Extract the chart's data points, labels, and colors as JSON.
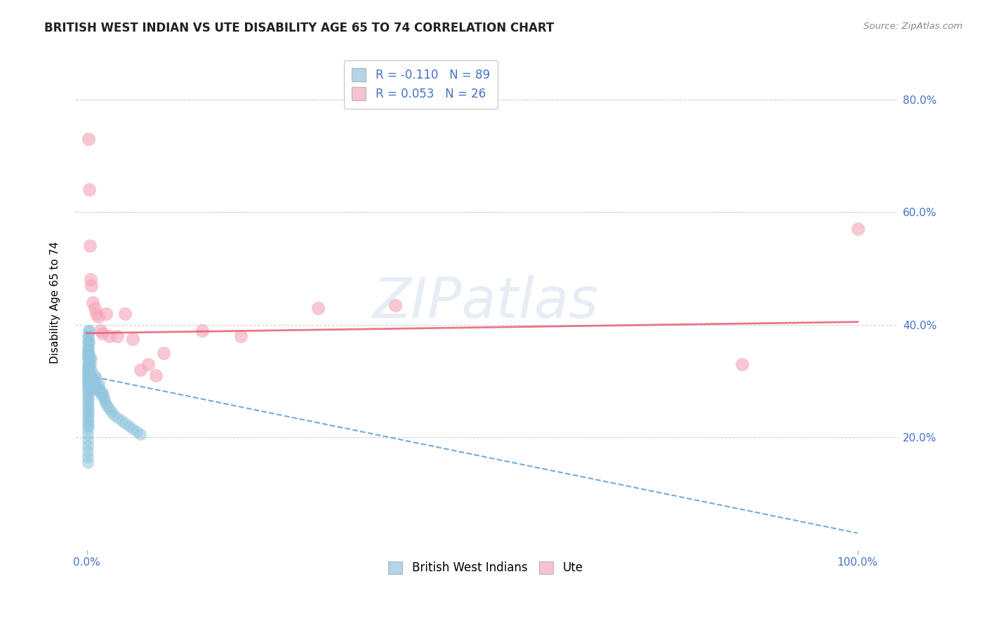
{
  "title": "BRITISH WEST INDIAN VS UTE DISABILITY AGE 65 TO 74 CORRELATION CHART",
  "source": "Source: ZipAtlas.com",
  "ylabel": "Disability Age 65 to 74",
  "watermark": "ZIPatlas",
  "blue_R": -0.11,
  "blue_N": 89,
  "pink_R": 0.053,
  "pink_N": 26,
  "blue_color": "#92c5de",
  "pink_color": "#f4a9bb",
  "blue_line_color": "#5b9bd5",
  "pink_line_color": "#e8677a",
  "legend_label_blue": "British West Indians",
  "legend_label_pink": "Ute",
  "blue_scatter_x": [
    0.001,
    0.001,
    0.001,
    0.001,
    0.001,
    0.001,
    0.001,
    0.001,
    0.001,
    0.001,
    0.001,
    0.001,
    0.001,
    0.001,
    0.001,
    0.001,
    0.001,
    0.001,
    0.001,
    0.001,
    0.001,
    0.001,
    0.001,
    0.001,
    0.001,
    0.001,
    0.001,
    0.001,
    0.001,
    0.001,
    0.002,
    0.002,
    0.002,
    0.002,
    0.002,
    0.002,
    0.002,
    0.002,
    0.002,
    0.002,
    0.002,
    0.002,
    0.002,
    0.002,
    0.002,
    0.002,
    0.002,
    0.003,
    0.003,
    0.003,
    0.003,
    0.003,
    0.003,
    0.004,
    0.004,
    0.004,
    0.005,
    0.005,
    0.006,
    0.006,
    0.007,
    0.008,
    0.009,
    0.01,
    0.01,
    0.011,
    0.012,
    0.013,
    0.015,
    0.016,
    0.017,
    0.018,
    0.019,
    0.02,
    0.021,
    0.022,
    0.023,
    0.025,
    0.027,
    0.03,
    0.032,
    0.035,
    0.04,
    0.045,
    0.05,
    0.055,
    0.06,
    0.065,
    0.07
  ],
  "blue_scatter_y": [
    0.29,
    0.31,
    0.32,
    0.33,
    0.295,
    0.305,
    0.315,
    0.325,
    0.285,
    0.3,
    0.34,
    0.35,
    0.36,
    0.345,
    0.355,
    0.265,
    0.275,
    0.255,
    0.245,
    0.235,
    0.225,
    0.215,
    0.205,
    0.195,
    0.185,
    0.175,
    0.165,
    0.155,
    0.38,
    0.37,
    0.3,
    0.31,
    0.32,
    0.33,
    0.34,
    0.35,
    0.36,
    0.37,
    0.38,
    0.39,
    0.28,
    0.27,
    0.26,
    0.25,
    0.24,
    0.23,
    0.22,
    0.29,
    0.31,
    0.33,
    0.35,
    0.37,
    0.39,
    0.3,
    0.32,
    0.34,
    0.31,
    0.33,
    0.32,
    0.34,
    0.305,
    0.295,
    0.285,
    0.31,
    0.3,
    0.295,
    0.305,
    0.285,
    0.29,
    0.295,
    0.285,
    0.28,
    0.275,
    0.28,
    0.275,
    0.27,
    0.265,
    0.26,
    0.255,
    0.25,
    0.245,
    0.24,
    0.235,
    0.23,
    0.225,
    0.22,
    0.215,
    0.21,
    0.205
  ],
  "pink_scatter_x": [
    0.002,
    0.003,
    0.004,
    0.005,
    0.006,
    0.008,
    0.01,
    0.012,
    0.015,
    0.018,
    0.02,
    0.025,
    0.03,
    0.04,
    0.05,
    0.06,
    0.07,
    0.08,
    0.09,
    0.1,
    0.15,
    0.2,
    0.3,
    0.4,
    0.85,
    1.0
  ],
  "pink_scatter_y": [
    0.73,
    0.64,
    0.54,
    0.48,
    0.47,
    0.44,
    0.43,
    0.42,
    0.415,
    0.39,
    0.385,
    0.42,
    0.38,
    0.38,
    0.42,
    0.375,
    0.32,
    0.33,
    0.31,
    0.35,
    0.39,
    0.38,
    0.43,
    0.435,
    0.33,
    0.57
  ],
  "blue_trendline_x": [
    0.0,
    1.0
  ],
  "blue_trendline_y": [
    0.31,
    0.03
  ],
  "pink_trendline_x": [
    0.0,
    1.0
  ],
  "pink_trendline_y": [
    0.385,
    0.405
  ],
  "xlim": [
    -0.015,
    1.05
  ],
  "ylim": [
    0.0,
    0.88
  ],
  "yticks": [
    0.2,
    0.4,
    0.6,
    0.8
  ],
  "ytick_labels": [
    "20.0%",
    "40.0%",
    "60.0%",
    "80.0%"
  ],
  "xticks": [
    0.0,
    1.0
  ],
  "xtick_labels": [
    "0.0%",
    "100.0%"
  ],
  "background_color": "#ffffff",
  "grid_color": "#cccccc",
  "tick_color": "#4472c4",
  "title_fontsize": 12,
  "axis_fontsize": 11,
  "legend_fontsize": 12
}
